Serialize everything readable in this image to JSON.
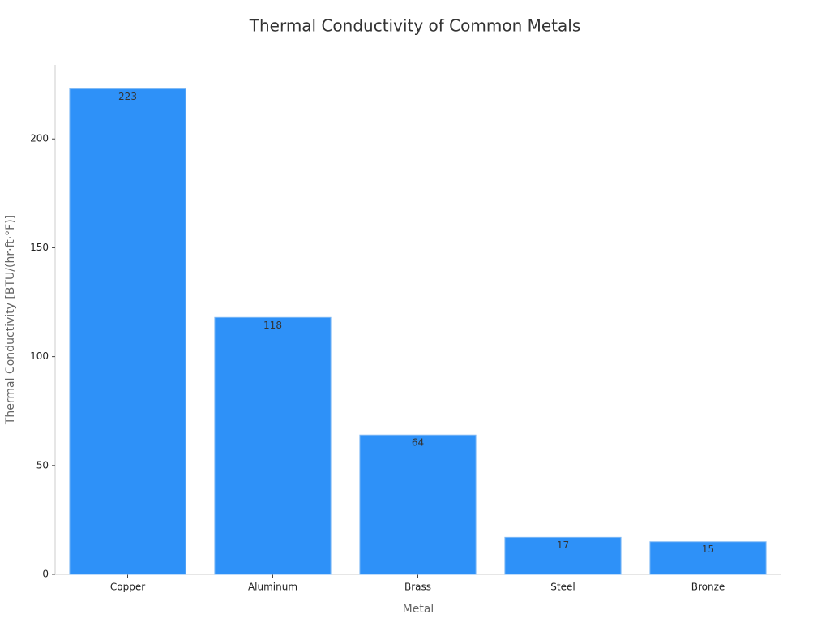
{
  "chart_data": {
    "type": "bar",
    "title": "Thermal Conductivity of Common Metals",
    "x_label": "Metal",
    "y_label": "Thermal Conductivity [BTU/(hr·ft·°F)]",
    "categories": [
      "Copper",
      "Aluminum",
      "Brass",
      "Steel",
      "Bronze"
    ],
    "values": [
      223,
      118,
      64,
      17,
      15
    ],
    "color": "#2e91f8",
    "ylim": [
      0,
      234
    ],
    "yticks": [
      0,
      50,
      100,
      150,
      200
    ],
    "grid": false,
    "data_labels": true
  }
}
